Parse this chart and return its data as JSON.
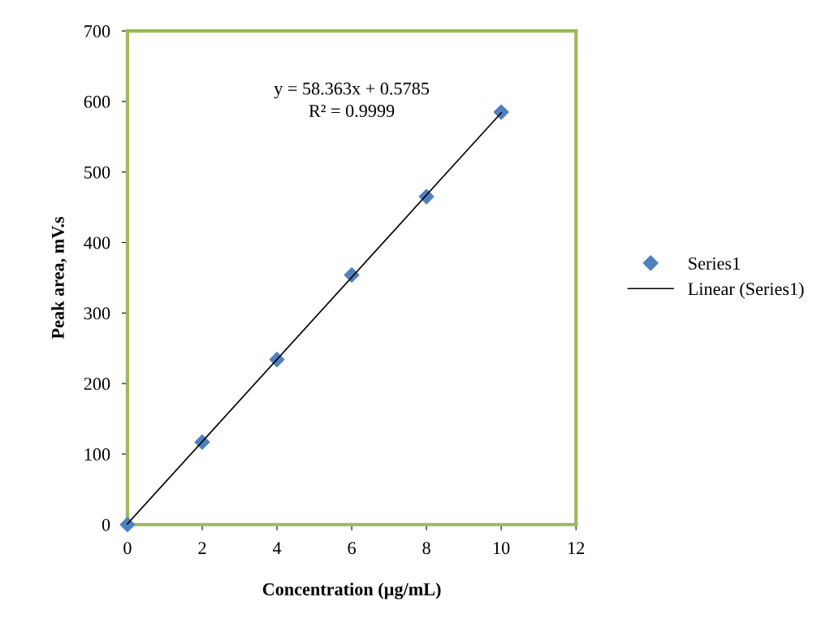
{
  "chart_data": {
    "type": "scatter",
    "xlabel": "Concentration (µg/mL)",
    "ylabel": "Peak area, mV.s",
    "x": [
      0,
      2,
      4,
      6,
      8,
      10
    ],
    "series": [
      {
        "name": "Series1",
        "color": "#4f81bd",
        "values": [
          0,
          117,
          234,
          354,
          465,
          585
        ],
        "marker": "diamond"
      },
      {
        "name": "Linear (Series1)",
        "type": "line",
        "color": "#000000",
        "x": [
          0,
          10
        ],
        "values": [
          1,
          584
        ],
        "marker": "none",
        "line_style": "solid"
      }
    ],
    "annotations": [
      "y = 58.363x + 0.5785",
      "R² = 0.9999"
    ],
    "xlim": [
      0,
      12
    ],
    "xticks": [
      0,
      2,
      4,
      6,
      8,
      10,
      12
    ],
    "ylim": [
      0,
      700
    ],
    "yticks": [
      0,
      100,
      200,
      300,
      400,
      500,
      600,
      700
    ],
    "grid": false,
    "legend": "right"
  }
}
